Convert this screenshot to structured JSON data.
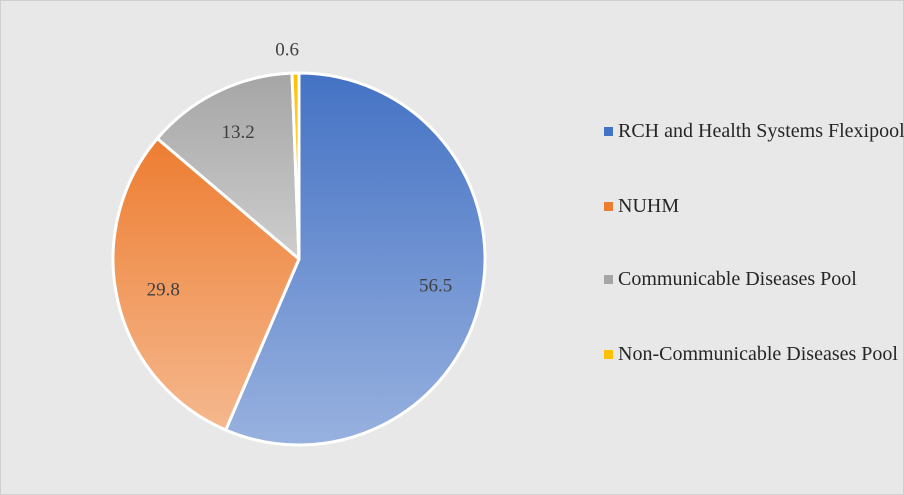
{
  "chart_data": {
    "type": "pie",
    "labels": [
      "RCH and Health Systems Flexipool",
      "NUHM",
      "Communicable Diseases Pool",
      "Non-Communicable Diseases Pool"
    ],
    "values": [
      56.5,
      29.8,
      13.2,
      0.6
    ],
    "colors": [
      "#4472c4",
      "#ed7d31",
      "#a5a5a5",
      "#ffc000"
    ],
    "legend": "right"
  }
}
